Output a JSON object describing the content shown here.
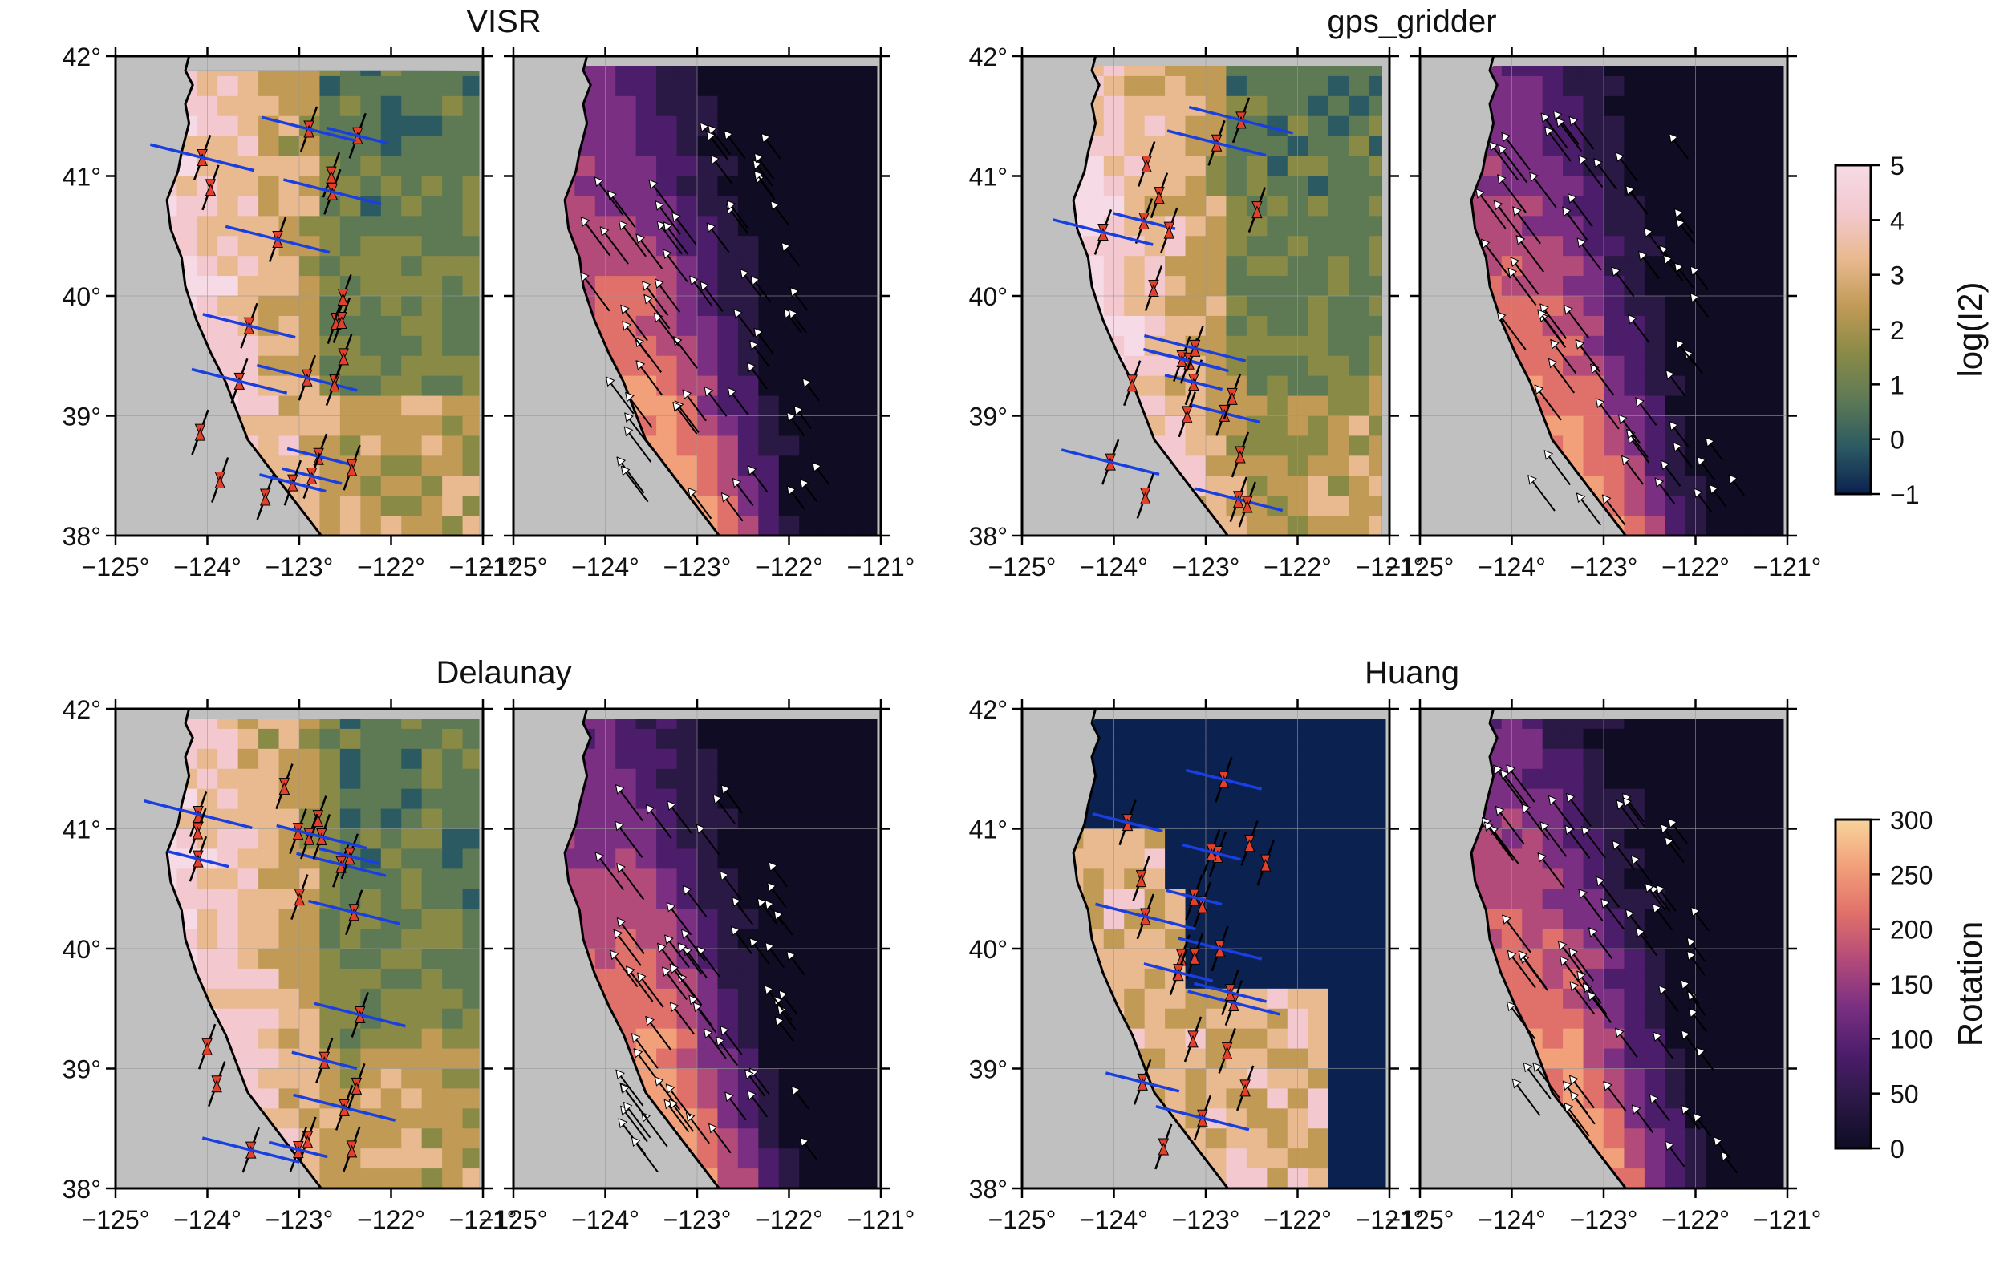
{
  "figure": {
    "titles": [
      "VISR",
      "gps_gridder",
      "Delaunay",
      "Huang"
    ],
    "lat_ticks": [
      "38°",
      "39°",
      "40°",
      "41°",
      "42°"
    ],
    "lon_ticks": [
      "−125°",
      "−124°",
      "−123°",
      "−122°",
      "−121°"
    ]
  },
  "colorbars": [
    {
      "label": "log(I2)",
      "tick_labels": [
        "5",
        "4",
        "3",
        "2",
        "1",
        "0",
        "−1"
      ],
      "range": [
        -1,
        5
      ],
      "colors": [
        "#0b2150",
        "#2c5a63",
        "#5d7a55",
        "#8a8a47",
        "#c19a56",
        "#e9b98f",
        "#f3c9cf",
        "#f6dbe6"
      ]
    },
    {
      "label": "Rotation",
      "tick_labels": [
        "300",
        "250",
        "200",
        "150",
        "100",
        "50",
        "0"
      ],
      "range": [
        0,
        300
      ],
      "colors": [
        "#0f0c24",
        "#2a1845",
        "#4c1d6b",
        "#7a2f82",
        "#b24a7a",
        "#e0706a",
        "#f2a07a",
        "#f7d49b"
      ]
    }
  ],
  "chart_data": {
    "type": "map",
    "lon_range": [
      -125,
      -121
    ],
    "lat_range": [
      38,
      42
    ],
    "panels": [
      {
        "method": "VISR",
        "field": "log(I2)"
      },
      {
        "method": "VISR",
        "field": "Rotation"
      },
      {
        "method": "gps_gridder",
        "field": "log(I2)"
      },
      {
        "method": "gps_gridder",
        "field": "Rotation"
      },
      {
        "method": "Delaunay",
        "field": "log(I2)"
      },
      {
        "method": "Delaunay",
        "field": "Rotation"
      },
      {
        "method": "Huang",
        "field": "log(I2)"
      },
      {
        "method": "Huang",
        "field": "Rotation"
      }
    ]
  }
}
